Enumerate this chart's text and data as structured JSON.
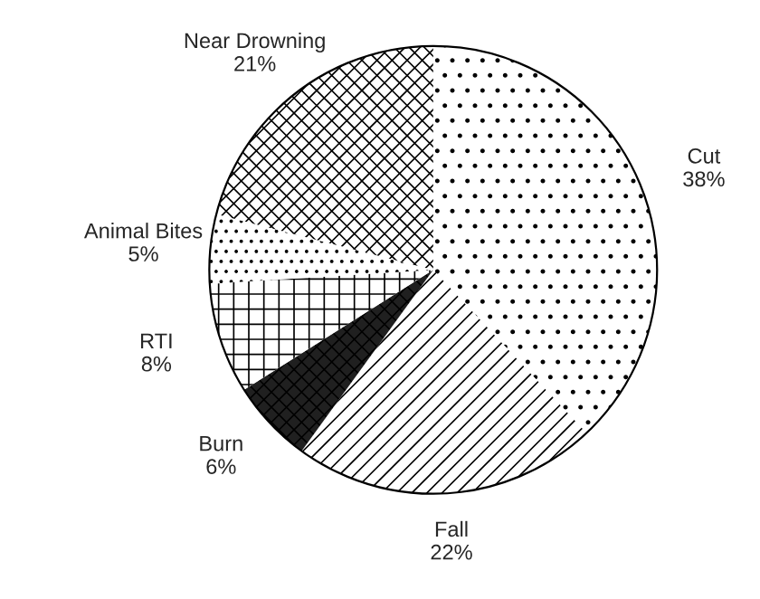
{
  "chart_data": {
    "type": "pie",
    "categories": [
      "Cut",
      "Fall",
      "Burn",
      "RTI",
      "Animal Bites",
      "Near Drowning"
    ],
    "values": [
      38,
      22,
      6,
      8,
      5,
      21
    ],
    "value_labels": [
      "38%",
      "22%",
      "6%",
      "8%",
      "5%",
      "21%"
    ],
    "colors": [
      "#ffffff",
      "#ffffff",
      "#202020",
      "#ffffff",
      "#ffffff",
      "#ffffff"
    ]
  }
}
